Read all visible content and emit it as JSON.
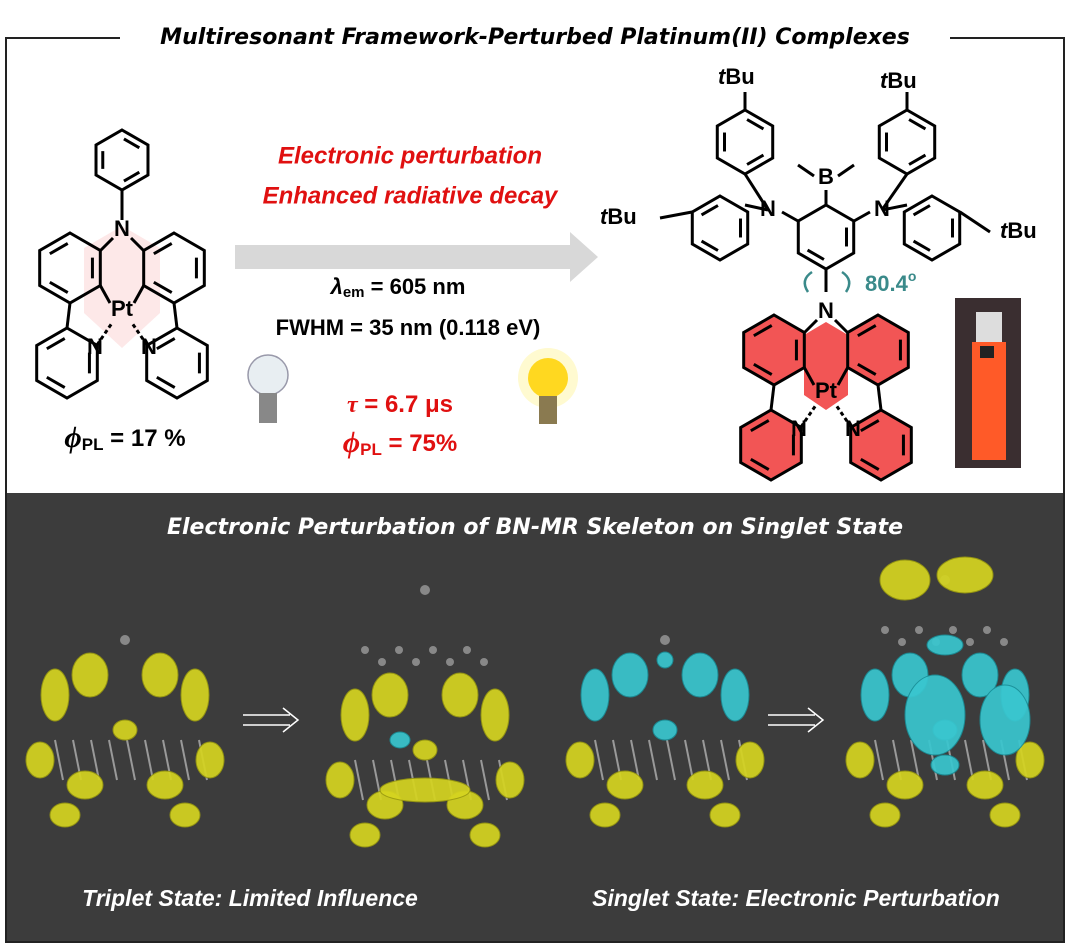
{
  "header": {
    "title": "Multiresonant Framework-Perturbed Platinum(II) Complexes"
  },
  "atoms": {
    "N": "N",
    "Pt": "Pt",
    "B": "B",
    "tbu_prefix": "t",
    "tbu_name": "Bu"
  },
  "left_molecule": {
    "qy": {
      "symbol": "ϕ",
      "sub": "PL",
      "text": " = 17 %"
    }
  },
  "arrow": {
    "line1": "Electronic perturbation",
    "line2": "Enhanced radiative decay",
    "emission": {
      "symbol": "λ",
      "sub": "em",
      "text": " = 605 nm"
    },
    "fwhm": "FWHM = 35 nm (0.118 eV)",
    "lifetime": {
      "symbol": "τ",
      "text": " = 6.7 μs"
    },
    "qy": {
      "symbol": "ϕ",
      "sub": "PL",
      "text": " = 75%"
    }
  },
  "right_molecule": {
    "angle": {
      "value": "80.4",
      "unit": "o"
    }
  },
  "bottom": {
    "title": "Electronic Perturbation of BN-MR Skeleton on Singlet State",
    "captions": [
      "Triplet State: Limited Influence",
      "Singlet State: Electronic Perturbation"
    ]
  }
}
